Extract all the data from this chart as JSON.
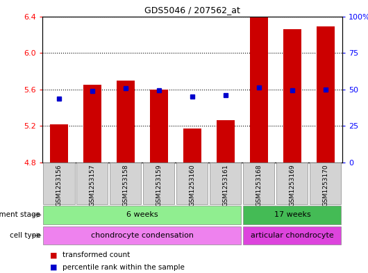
{
  "title": "GDS5046 / 207562_at",
  "samples": [
    "GSM1253156",
    "GSM1253157",
    "GSM1253158",
    "GSM1253159",
    "GSM1253160",
    "GSM1253161",
    "GSM1253168",
    "GSM1253169",
    "GSM1253170"
  ],
  "bar_values": [
    5.22,
    5.65,
    5.7,
    5.6,
    5.17,
    5.26,
    6.39,
    6.26,
    6.29
  ],
  "dot_values": [
    5.5,
    5.58,
    5.61,
    5.59,
    5.52,
    5.54,
    5.62,
    5.59,
    5.6
  ],
  "ylim_left": [
    4.8,
    6.4
  ],
  "ylim_right": [
    0,
    100
  ],
  "yticks_left": [
    4.8,
    5.2,
    5.6,
    6.0,
    6.4
  ],
  "yticks_right": [
    0,
    25,
    50,
    75,
    100
  ],
  "bar_color": "#cc0000",
  "dot_color": "#0000cc",
  "bar_bottom": 4.8,
  "development_stage_label": "development stage",
  "cell_type_label": "cell type",
  "group_6w_color": "#90ee90",
  "group_17w_color": "#44bb55",
  "cell_cc_color": "#ee82ee",
  "cell_ac_color": "#dd44dd",
  "legend_bar_label": "transformed count",
  "legend_dot_label": "percentile rank within the sample",
  "tick_bg_color": "#d3d3d3",
  "plot_bg_color": "#ffffff",
  "bar_width": 0.55
}
